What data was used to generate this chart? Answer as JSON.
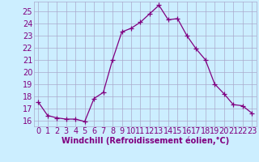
{
  "x": [
    0,
    1,
    2,
    3,
    4,
    5,
    6,
    7,
    8,
    9,
    10,
    11,
    12,
    13,
    14,
    15,
    16,
    17,
    18,
    19,
    20,
    21,
    22,
    23
  ],
  "y": [
    17.5,
    16.4,
    16.2,
    16.1,
    16.1,
    15.9,
    17.8,
    18.3,
    21.0,
    23.3,
    23.6,
    24.1,
    24.8,
    25.5,
    24.3,
    24.4,
    23.0,
    21.9,
    21.0,
    19.0,
    18.2,
    17.3,
    17.2,
    16.6
  ],
  "line_color": "#800080",
  "marker": "+",
  "marker_size": 4,
  "bg_color": "#cceeff",
  "grid_color": "#aaaacc",
  "xlabel": "Windchill (Refroidissement éolien,°C)",
  "xlim": [
    -0.5,
    23.5
  ],
  "ylim": [
    15.5,
    25.8
  ],
  "yticks": [
    16,
    17,
    18,
    19,
    20,
    21,
    22,
    23,
    24,
    25
  ],
  "xticks": [
    0,
    1,
    2,
    3,
    4,
    5,
    6,
    7,
    8,
    9,
    10,
    11,
    12,
    13,
    14,
    15,
    16,
    17,
    18,
    19,
    20,
    21,
    22,
    23
  ],
  "tick_fontsize": 7,
  "xlabel_fontsize": 7
}
